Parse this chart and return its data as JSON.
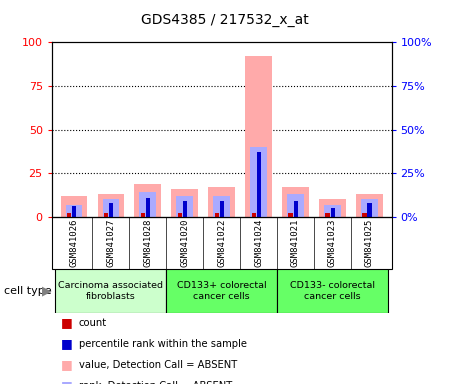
{
  "title": "GDS4385 / 217532_x_at",
  "samples": [
    "GSM841026",
    "GSM841027",
    "GSM841028",
    "GSM841020",
    "GSM841022",
    "GSM841024",
    "GSM841021",
    "GSM841023",
    "GSM841025"
  ],
  "group_colors": [
    "#ccffcc",
    "#66ff66",
    "#66ff66"
  ],
  "group_labels": [
    "Carcinoma associated\nfibroblasts",
    "CD133+ colorectal\ncancer cells",
    "CD133- colorectal\ncancer cells"
  ],
  "group_ranges": [
    [
      0,
      3
    ],
    [
      3,
      6
    ],
    [
      6,
      9
    ]
  ],
  "value_absent": [
    12,
    13,
    19,
    16,
    17,
    92,
    17,
    10,
    13
  ],
  "rank_absent": [
    7,
    10,
    14,
    12,
    12,
    40,
    13,
    7,
    10
  ],
  "count": [
    2,
    2,
    2,
    2,
    2,
    2,
    2,
    2,
    2
  ],
  "percentile": [
    6,
    8,
    11,
    9,
    9,
    37,
    9,
    5,
    8
  ],
  "color_value_absent": "#ffaaaa",
  "color_rank_absent": "#aaaaff",
  "color_count": "#cc0000",
  "color_percentile": "#0000cc",
  "ylim": [
    0,
    100
  ],
  "yticks": [
    0,
    25,
    50,
    75,
    100
  ],
  "background_color": "#ffffff",
  "sample_box_color": "#d3d3d3"
}
